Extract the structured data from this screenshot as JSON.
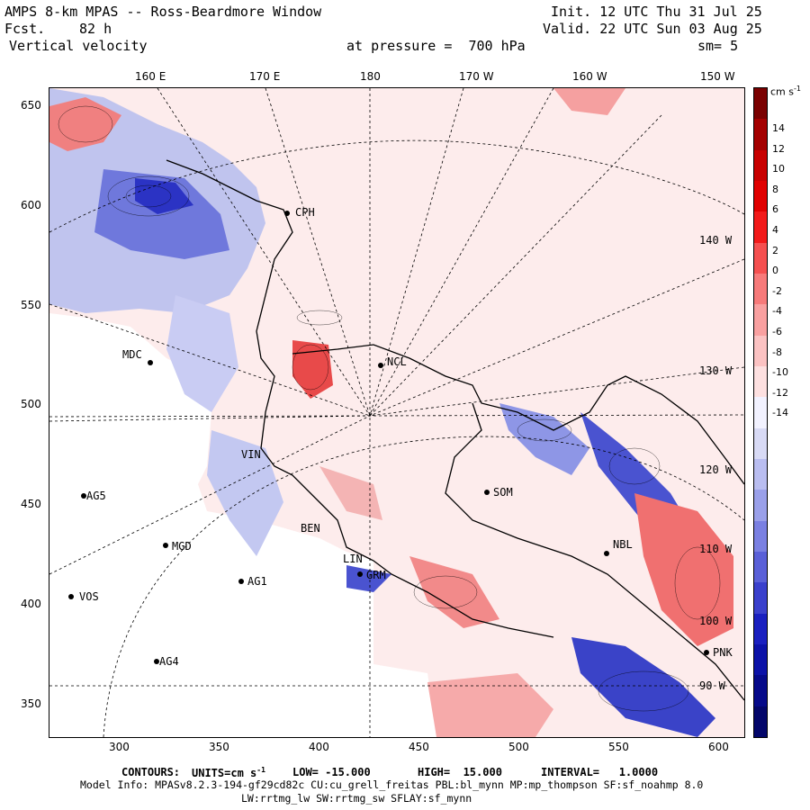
{
  "header": {
    "title": "AMPS 8-km MPAS -- Ross-Beardmore Window",
    "fcst_label": "Fcst.",
    "fcst_value": "82 h",
    "field": "Vertical velocity",
    "init": "Init. 12 UTC Thu 31 Jul 25",
    "valid": "Valid. 22 UTC Sun 03 Aug 25",
    "level": "at pressure =  700 hPa",
    "smooth": "sm= 5"
  },
  "top_axis": [
    "160 E",
    "170 E",
    "180",
    "170 W",
    "160 W",
    "150 W"
  ],
  "left_axis": [
    "650",
    "600",
    "550",
    "500",
    "450",
    "400",
    "350"
  ],
  "bottom_axis": [
    "300",
    "350",
    "400",
    "450",
    "500",
    "550",
    "600"
  ],
  "stations": [
    {
      "name": "CPH"
    },
    {
      "name": "MDC"
    },
    {
      "name": "NCL"
    },
    {
      "name": "SOM"
    },
    {
      "name": "AG5"
    },
    {
      "name": "MGD"
    },
    {
      "name": "AG1"
    },
    {
      "name": "VOS"
    },
    {
      "name": "AG4"
    },
    {
      "name": "GRM"
    },
    {
      "name": "NBL"
    },
    {
      "name": "PNK"
    },
    {
      "name": "BEN"
    },
    {
      "name": "LIN"
    },
    {
      "name": "VIN"
    }
  ],
  "meridian_labels": [
    "140 W",
    "130 W",
    "120 W",
    "110 W",
    "100 W",
    "90 W"
  ],
  "colorbar": {
    "unit": "cm s",
    "unit_exp": "-1",
    "ticks": [
      "14",
      "12",
      "10",
      "8",
      "6",
      "4",
      "2",
      "0",
      "-2",
      "-4",
      "-6",
      "-8",
      "-10",
      "-12",
      "-14"
    ],
    "colors": [
      "#7a0000",
      "#a40000",
      "#c80000",
      "#e00000",
      "#f21a1a",
      "#f55050",
      "#f77a7a",
      "#f9a0a0",
      "#fbc2c2",
      "#fde0e0",
      "#f2f2ff",
      "#d8daf5",
      "#b9bdf0",
      "#9aa0ea",
      "#7a80e2",
      "#5a60d8",
      "#3a40cc",
      "#1a20c0",
      "#0c12a8",
      "#060a8a",
      "#03066a"
    ]
  },
  "footer": {
    "contours_label": "CONTOURS:",
    "units_label": "UNITS=cm s",
    "units_exp": "-1",
    "low": "LOW= -15.000",
    "high": "HIGH=  15.000",
    "interval": "INTERVAL=   1.0000",
    "model_info": "Model Info: MPASv8.2.3-194-gf29cd82c CU:cu_grell_freitas PBL:bl_mynn MP:mp_thompson SF:sf_noahmp 8.0",
    "model_info2": "LW:rrtmg_lw SW:rrtmg_sw SFLAY:sf_mynn"
  }
}
